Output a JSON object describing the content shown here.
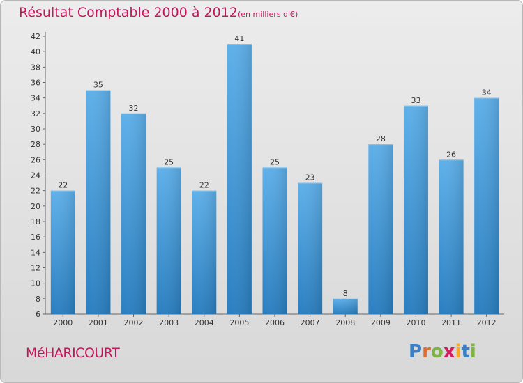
{
  "chart_data": {
    "type": "bar",
    "title": "Résultat Comptable 2000 à 2012",
    "subtitle": "(en milliers d'€)",
    "categories": [
      "2000",
      "2001",
      "2002",
      "2003",
      "2004",
      "2005",
      "2006",
      "2007",
      "2008",
      "2009",
      "2010",
      "2011",
      "2012"
    ],
    "values": [
      22,
      35,
      32,
      25,
      22,
      41,
      25,
      23,
      8,
      28,
      33,
      26,
      34
    ],
    "ylim": [
      6,
      42
    ],
    "yticks": [
      6,
      8,
      10,
      12,
      14,
      16,
      18,
      20,
      22,
      24,
      26,
      28,
      30,
      32,
      34,
      36,
      38,
      40,
      42
    ],
    "xlabel": "",
    "ylabel": "",
    "grid": false,
    "bar_color_top": "#5eb0ea",
    "bar_color_bottom": "#2a7fc1"
  },
  "footer": {
    "commune": "MéHARICOURT",
    "logo_letters": [
      {
        "ch": "P",
        "color": "#3b7fc4"
      },
      {
        "ch": "r",
        "color": "#e36b2c"
      },
      {
        "ch": "o",
        "color": "#7cb342"
      },
      {
        "ch": "x",
        "color": "#d81b60"
      },
      {
        "ch": "i",
        "color": "#f9a825"
      },
      {
        "ch": "t",
        "color": "#3b7fc4"
      },
      {
        "ch": "i",
        "color": "#7cb342"
      }
    ]
  }
}
